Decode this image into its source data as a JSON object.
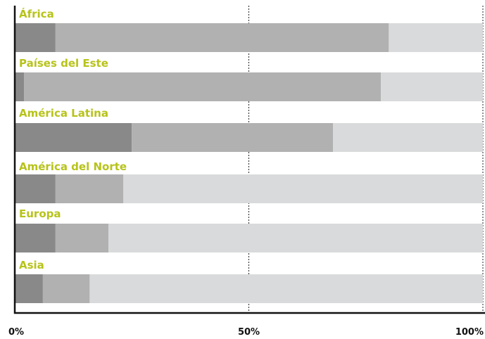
{
  "chart_data": {
    "type": "bar",
    "orientation": "horizontal",
    "stacked": true,
    "categories": [
      "África",
      "Países del Este",
      "América Latina",
      "América del Norte",
      "Europa",
      "Asia"
    ],
    "series": [
      {
        "values": [
          8.7,
          2.0,
          25.0,
          8.7,
          8.7,
          6.0
        ]
      },
      {
        "values": [
          71.2,
          76.2,
          43.0,
          14.5,
          11.3,
          10.0
        ]
      },
      {
        "values": [
          20.1,
          21.8,
          32.0,
          76.8,
          80.0,
          84.0
        ]
      }
    ],
    "x_ticks": [
      "0%",
      "50%",
      "100%"
    ],
    "xlim": [
      0,
      100
    ],
    "grid": "vertical dotted at 50% and 100%",
    "colors": {
      "series": [
        "#898989",
        "#b1b1b1",
        "#d9dadb"
      ],
      "label": "#b7c31a",
      "axis": "#111111"
    }
  }
}
